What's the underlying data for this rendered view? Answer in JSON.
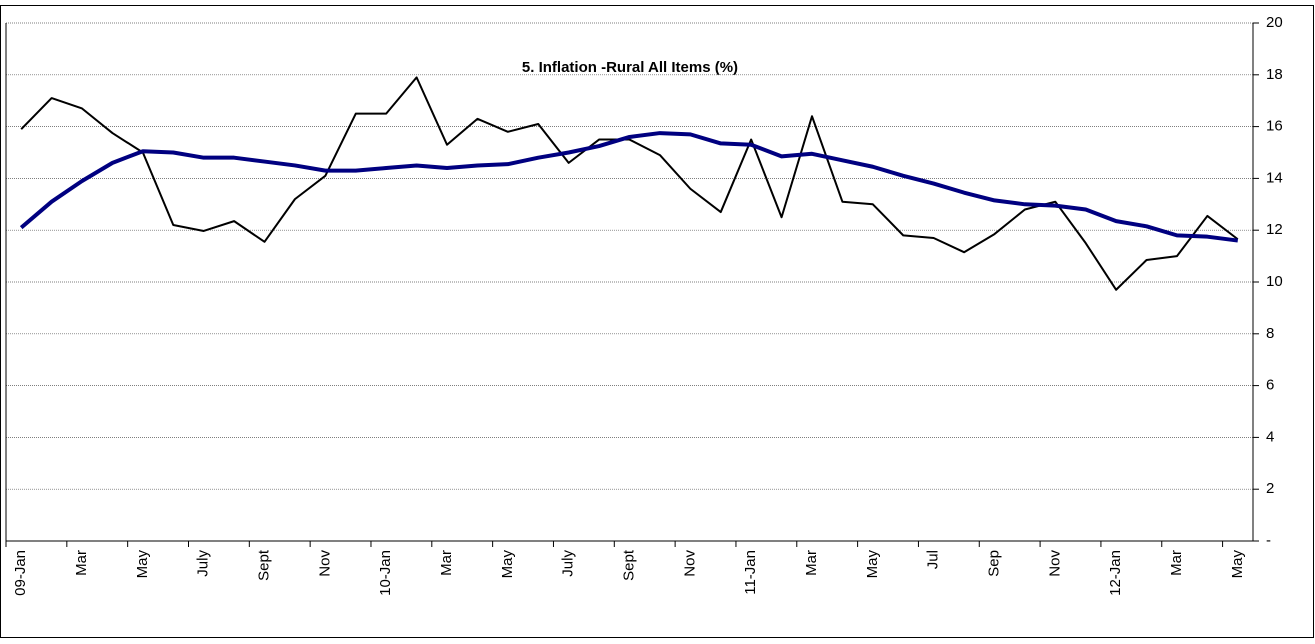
{
  "chart_data": {
    "type": "line",
    "title": "5. Inflation -Rural All Items (%)",
    "categories": [
      "09-Jan",
      null,
      "Mar",
      null,
      "May",
      null,
      "July",
      null,
      "Sept",
      null,
      "Nov",
      null,
      "10-Jan",
      null,
      "Mar",
      null,
      "May",
      null,
      "July",
      null,
      "Sept",
      null,
      "Nov",
      null,
      "11-Jan",
      null,
      "Mar",
      null,
      "May",
      null,
      "Jul",
      null,
      "Sep",
      null,
      "Nov",
      null,
      "12-Jan",
      null,
      "Mar",
      null,
      "May"
    ],
    "series": [
      {
        "color": "#000000",
        "values": [
          15.9,
          17.1,
          16.7,
          15.75,
          15.0,
          12.2,
          11.97,
          12.35,
          11.55,
          13.2,
          14.1,
          16.5,
          16.5,
          17.9,
          15.3,
          16.3,
          15.8,
          16.1,
          14.6,
          15.5,
          15.5,
          14.9,
          13.6,
          12.7,
          15.5,
          12.5,
          16.4,
          13.1,
          13.0,
          11.8,
          11.7,
          11.15,
          11.85,
          12.8,
          13.1,
          11.5,
          9.7,
          10.85,
          11.0,
          12.55,
          11.65
        ]
      },
      {
        "color": "#000080",
        "values": [
          12.1,
          13.1,
          13.9,
          14.6,
          15.05,
          15.0,
          14.8,
          14.8,
          14.65,
          14.5,
          14.3,
          14.3,
          14.4,
          14.5,
          14.4,
          14.5,
          14.55,
          14.8,
          15.0,
          15.25,
          15.6,
          15.75,
          15.7,
          15.35,
          15.3,
          14.85,
          14.95,
          14.7,
          14.45,
          14.1,
          13.8,
          13.45,
          13.15,
          13.0,
          12.95,
          12.8,
          12.35,
          12.15,
          11.8,
          11.75,
          11.6
        ]
      }
    ],
    "ylim": [
      0,
      20
    ],
    "yticks": [
      {
        "value": 0,
        "label": "-"
      },
      2,
      4,
      6,
      8,
      10,
      12,
      14,
      16,
      18,
      20
    ],
    "grid": true
  }
}
